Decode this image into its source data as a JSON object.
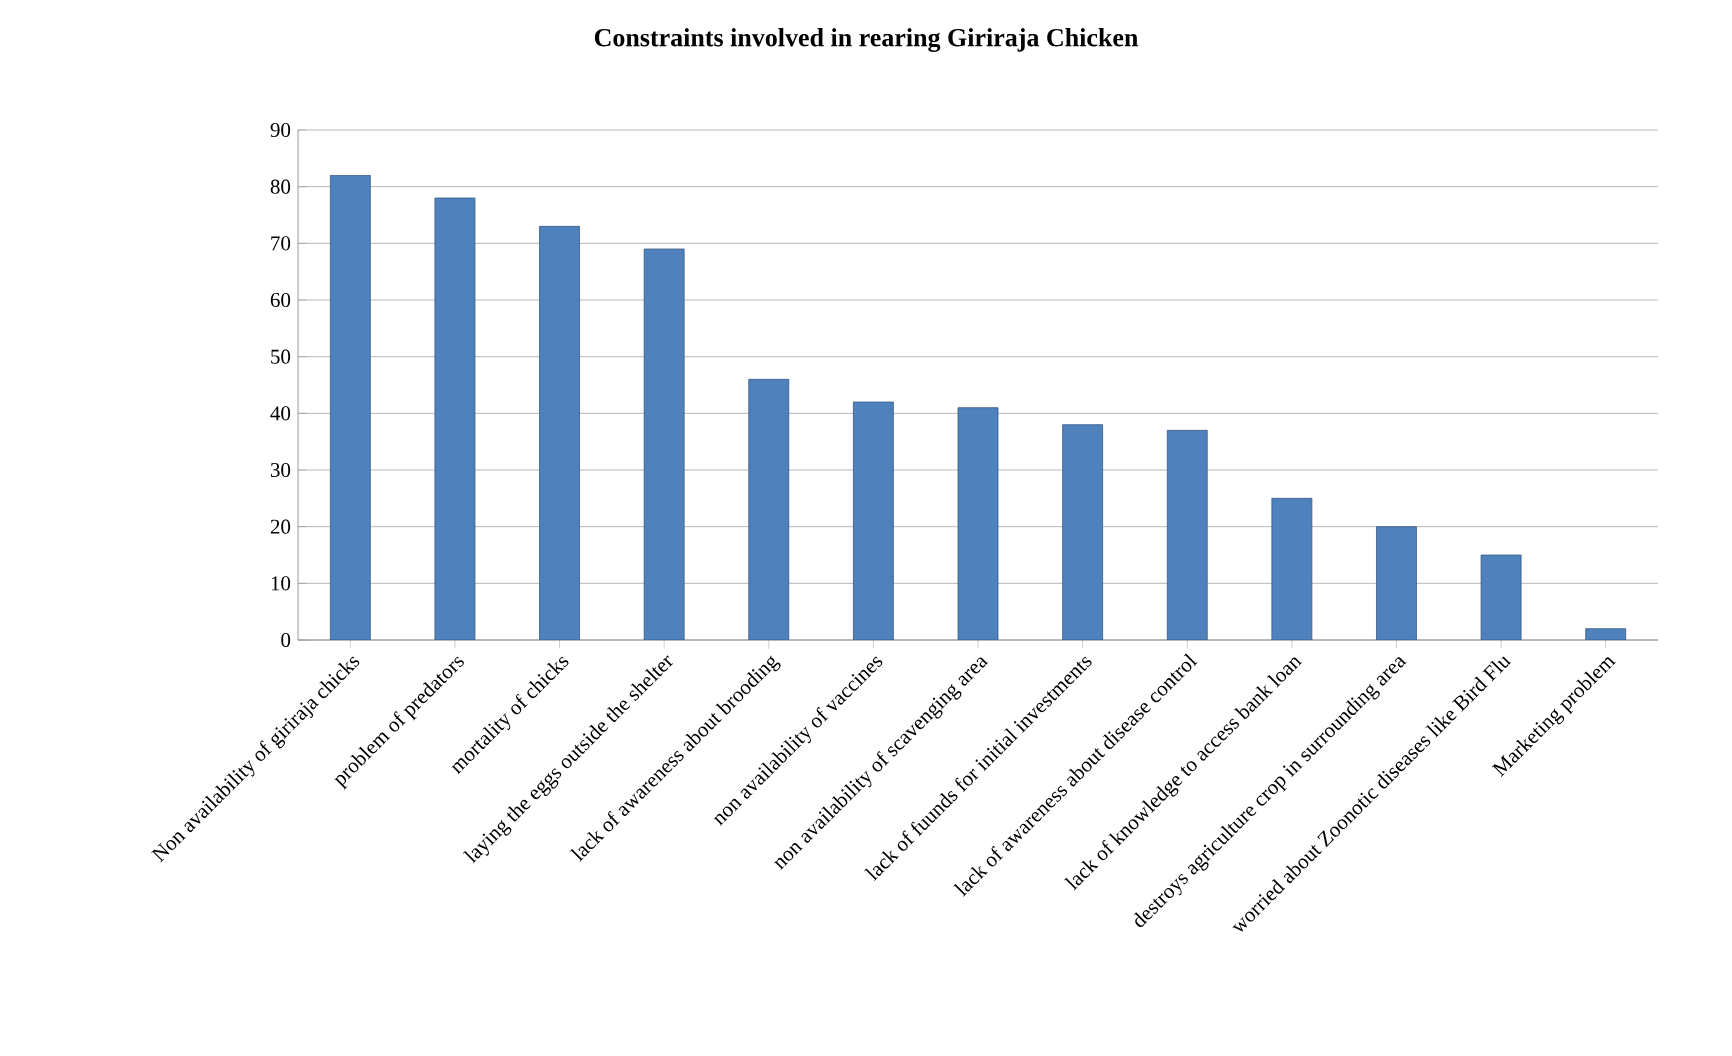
{
  "chart_data": {
    "type": "bar",
    "title": "Constraints involved in rearing Giriraja Chicken",
    "categories": [
      "Non availability of giriraja chicks",
      "problem of predators",
      "mortality of chicks",
      "laying the eggs outside the shelter",
      "lack of awareness about brooding",
      "non availability of vaccines",
      "non availability of scavenging area",
      "lack of fuunds for initial investments",
      "lack of awareness about disease control",
      "lack of knowledge to access bank loan",
      "destroys agriculture crop in surrounding area",
      "worried about Zoonotic diseases like Bird Flu",
      "Marketing problem"
    ],
    "values": [
      82,
      78,
      73,
      69,
      46,
      42,
      41,
      38,
      37,
      25,
      20,
      15,
      2
    ],
    "color": "#4f81bd",
    "ylim": [
      0,
      90
    ],
    "yticks": [
      0,
      10,
      20,
      30,
      40,
      50,
      60,
      70,
      80,
      90
    ],
    "grid": "y"
  }
}
